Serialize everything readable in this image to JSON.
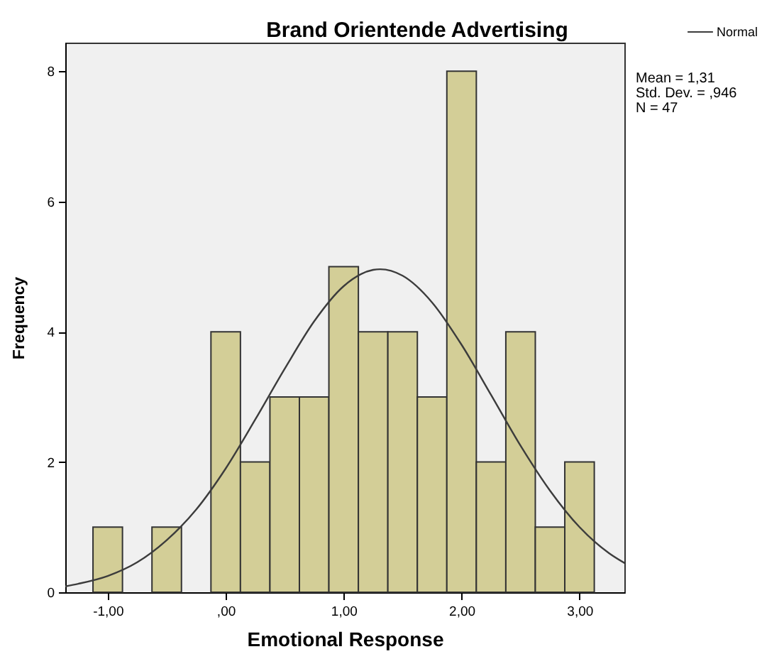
{
  "chart_data": {
    "type": "histogram",
    "title": "Brand Orientende Advertising",
    "xlabel": "Emotional Response",
    "ylabel": "Frequency",
    "bins": [
      -1.125,
      -0.875,
      -0.625,
      -0.375,
      -0.125,
      0.125,
      0.375,
      0.625,
      0.875,
      1.125,
      1.375,
      1.625,
      1.875,
      2.125,
      2.375,
      2.625,
      2.875,
      3.125
    ],
    "series": [
      {
        "color": "#d3ce97",
        "values": [
          1,
          0,
          1,
          0,
          4,
          2,
          3,
          3,
          5,
          4,
          4,
          3,
          8,
          2,
          4,
          1,
          2
        ]
      },
      {
        "name": "Normal",
        "type": "line",
        "color": "#3c3c3c",
        "x": [
          -1.36,
          -1.25,
          -1.0,
          -0.75,
          -0.5,
          -0.25,
          0,
          0.25,
          0.5,
          0.75,
          1.0,
          1.25,
          1.31,
          1.5,
          1.75,
          2.0,
          2.25,
          2.5,
          2.75,
          3.0,
          3.25,
          3.38
        ],
        "values": [
          0.09,
          0.13,
          0.25,
          0.46,
          0.8,
          1.27,
          1.9,
          2.65,
          3.43,
          4.16,
          4.7,
          4.95,
          4.96,
          4.86,
          4.45,
          3.8,
          3.03,
          2.25,
          1.56,
          1.0,
          0.6,
          0.45
        ]
      }
    ],
    "xlim": [
      -1.36,
      3.38
    ],
    "ylim": [
      0,
      8.44
    ],
    "xticks": [
      {
        "value": -1,
        "label": "-1,00"
      },
      {
        "value": 0,
        "label": ",00"
      },
      {
        "value": 1,
        "label": "1,00"
      },
      {
        "value": 2,
        "label": "2,00"
      },
      {
        "value": 3,
        "label": "3,00"
      }
    ],
    "yticks": [
      0,
      2,
      4,
      6,
      8
    ],
    "legend": "top right",
    "annotations": [
      "Mean = 1,31",
      "Std. Dev. = ,946",
      "N = 47"
    ]
  }
}
